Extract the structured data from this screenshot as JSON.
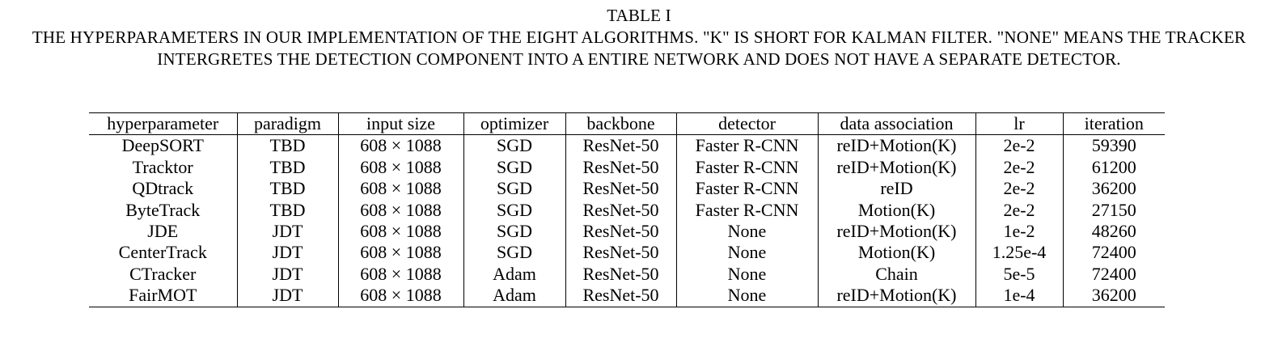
{
  "caption": {
    "label": "TABLE I",
    "text": "THE HYPERPARAMETERS IN OUR IMPLEMENTATION OF THE EIGHT ALGORITHMS. \"K\" IS SHORT FOR KALMAN FILTER. \"NONE\" MEANS THE TRACKER INTERGRETES THE DETECTION COMPONENT INTO A ENTIRE NETWORK AND DOES NOT HAVE A SEPARATE DETECTOR."
  },
  "table": {
    "headers": [
      "hyperparameter",
      "paradigm",
      "input size",
      "optimizer",
      "backbone",
      "detector",
      "data association",
      "lr",
      "iteration"
    ],
    "rows": [
      [
        "DeepSORT",
        "TBD",
        "608 × 1088",
        "SGD",
        "ResNet-50",
        "Faster R-CNN",
        "reID+Motion(K)",
        "2e-2",
        "59390"
      ],
      [
        "Tracktor",
        "TBD",
        "608 × 1088",
        "SGD",
        "ResNet-50",
        "Faster R-CNN",
        "reID+Motion(K)",
        "2e-2",
        "61200"
      ],
      [
        "QDtrack",
        "TBD",
        "608 × 1088",
        "SGD",
        "ResNet-50",
        "Faster R-CNN",
        "reID",
        "2e-2",
        "36200"
      ],
      [
        "ByteTrack",
        "TBD",
        "608 × 1088",
        "SGD",
        "ResNet-50",
        "Faster R-CNN",
        "Motion(K)",
        "2e-2",
        "27150"
      ],
      [
        "JDE",
        "JDT",
        "608 × 1088",
        "SGD",
        "ResNet-50",
        "None",
        "reID+Motion(K)",
        "1e-2",
        "48260"
      ],
      [
        "CenterTrack",
        "JDT",
        "608 × 1088",
        "SGD",
        "ResNet-50",
        "None",
        "Motion(K)",
        "1.25e-4",
        "72400"
      ],
      [
        "CTracker",
        "JDT",
        "608 × 1088",
        "Adam",
        "ResNet-50",
        "None",
        "Chain",
        "5e-5",
        "72400"
      ],
      [
        "FairMOT",
        "JDT",
        "608 × 1088",
        "Adam",
        "ResNet-50",
        "None",
        "reID+Motion(K)",
        "1e-4",
        "36200"
      ]
    ]
  }
}
